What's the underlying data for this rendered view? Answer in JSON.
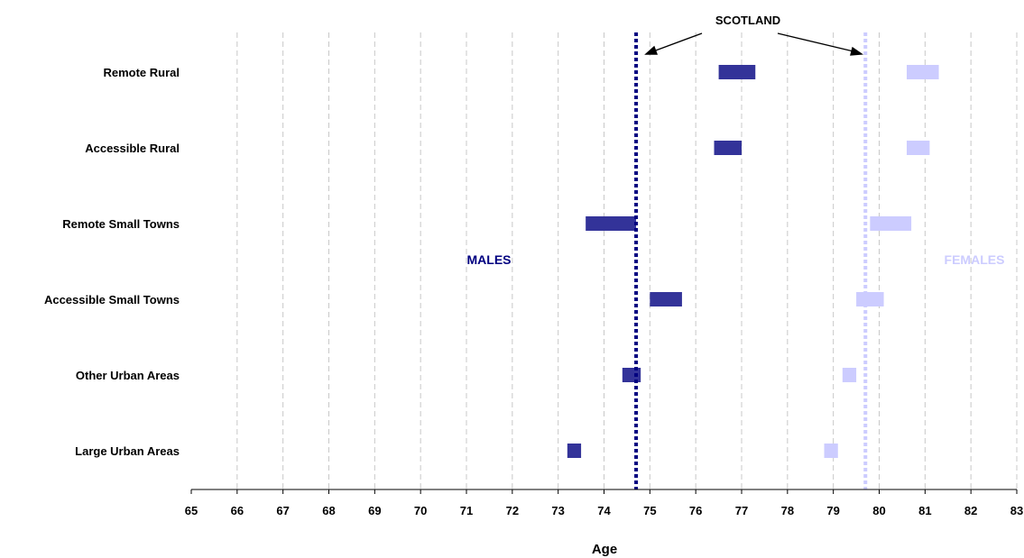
{
  "chart_data": {
    "type": "range-bar",
    "xlabel": "Age",
    "xlim": [
      65,
      83
    ],
    "x_ticks": [
      "65",
      "66",
      "67",
      "68",
      "69",
      "70",
      "71",
      "72",
      "73",
      "74",
      "75",
      "76",
      "77",
      "78",
      "79",
      "80",
      "81",
      "82",
      "83"
    ],
    "grid": "vertical dashed",
    "categories": [
      "Remote Rural",
      "Accessible Rural",
      "Remote Small Towns",
      "Accessible Small Towns",
      "Other Urban Areas",
      "Large Urban Areas"
    ],
    "series": [
      {
        "name": "MALES",
        "color": "#333399",
        "ranges": [
          [
            76.5,
            77.3
          ],
          [
            76.4,
            77.0
          ],
          [
            73.6,
            74.7
          ],
          [
            75.0,
            75.7
          ],
          [
            74.4,
            74.8
          ],
          [
            73.2,
            73.5
          ]
        ],
        "reference": 74.7
      },
      {
        "name": "FEMALES",
        "color": "#ccccff",
        "ranges": [
          [
            80.6,
            81.3
          ],
          [
            80.6,
            81.1
          ],
          [
            79.8,
            80.7
          ],
          [
            79.5,
            80.1
          ],
          [
            79.2,
            79.5
          ],
          [
            78.8,
            79.1
          ]
        ],
        "reference": 79.7
      }
    ],
    "reference_label": "SCOTLAND",
    "reference_colors": [
      "#000080",
      "#ccccff"
    ]
  }
}
